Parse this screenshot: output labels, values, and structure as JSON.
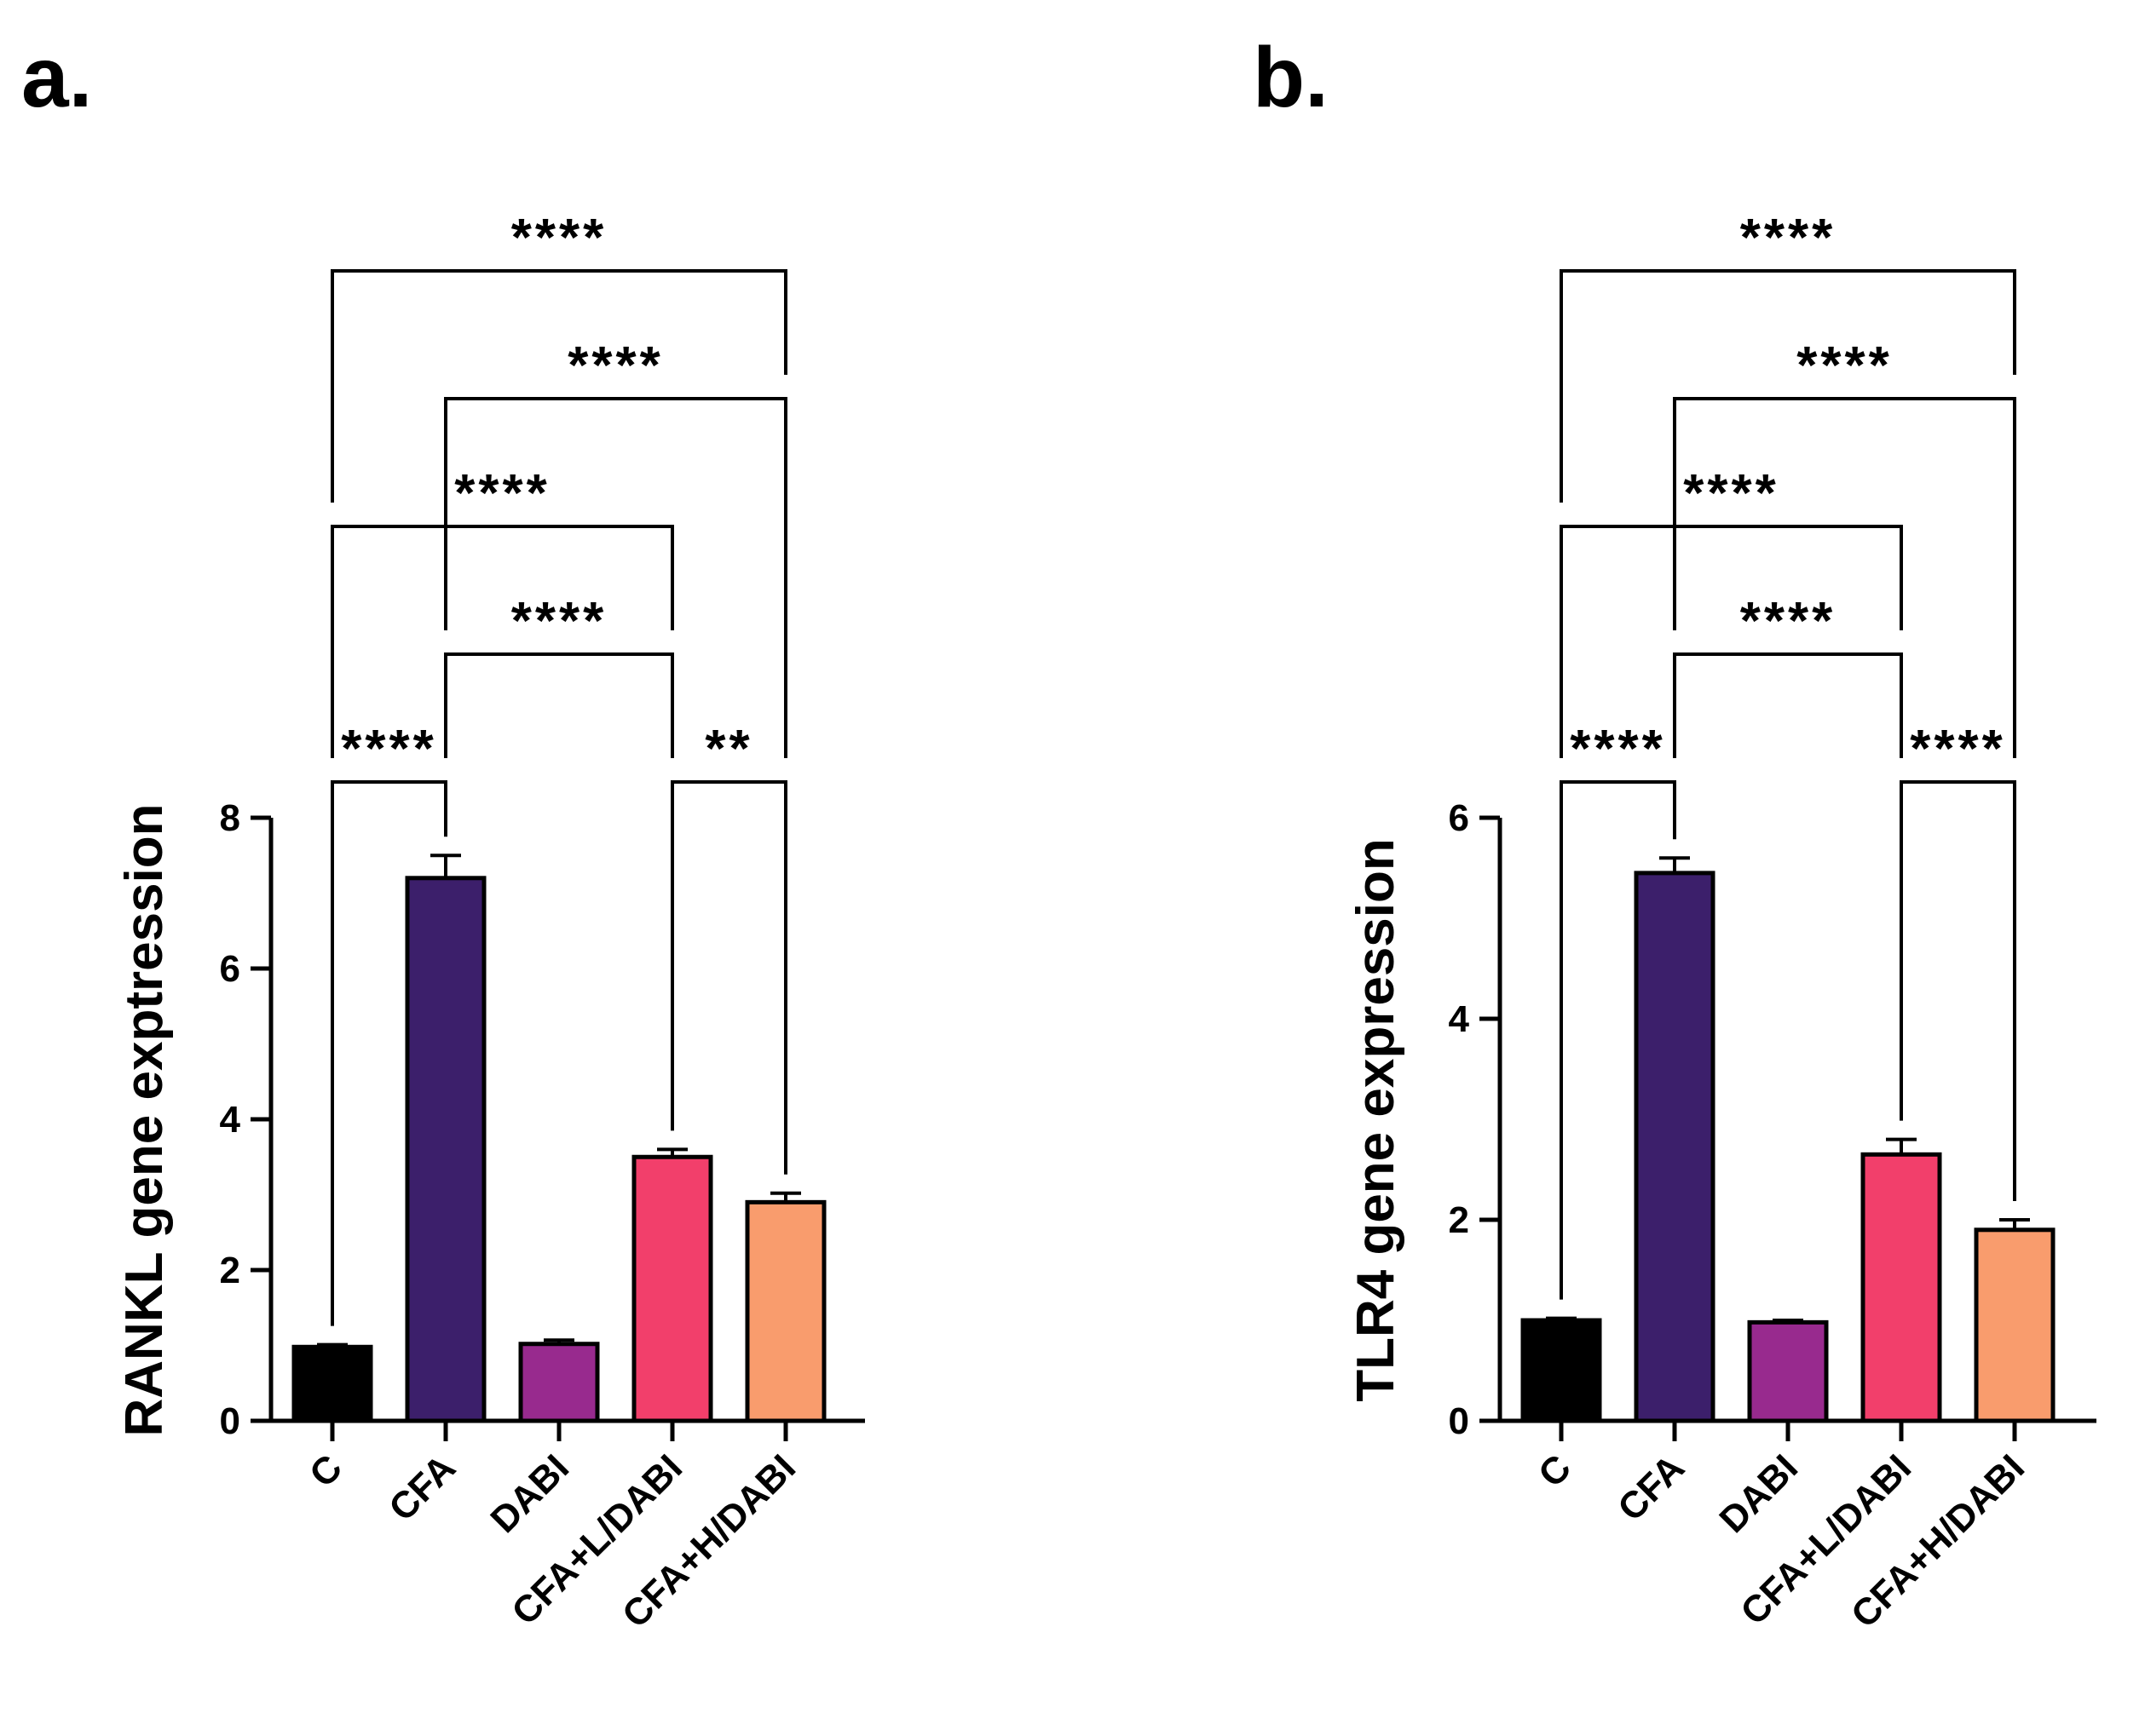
{
  "chart_data": [
    {
      "type": "bar",
      "panel": "a.",
      "categories": [
        "C",
        "CFA",
        "DABI",
        "CFA+L/DABI",
        "CFA+H/DABI"
      ],
      "values": [
        0.98,
        7.2,
        1.02,
        3.5,
        2.9
      ],
      "errors": [
        0.03,
        0.3,
        0.05,
        0.1,
        0.12
      ],
      "colors": [
        "#000000",
        "#3c1f6b",
        "#982a8e",
        "#f23f6b",
        "#f99c6d"
      ],
      "ylabel": "RANKL gene exptression",
      "xlabel": "",
      "ylim": [
        0,
        8
      ],
      "yticks": [
        0,
        2,
        4,
        6,
        8
      ],
      "comparisons": [
        {
          "from": 0,
          "to": 4,
          "label": "****"
        },
        {
          "from": 1,
          "to": 4,
          "label": "****"
        },
        {
          "from": 0,
          "to": 3,
          "label": "****"
        },
        {
          "from": 1,
          "to": 3,
          "label": "****"
        },
        {
          "from": 0,
          "to": 1,
          "label": "****"
        },
        {
          "from": 3,
          "to": 4,
          "label": "**"
        }
      ]
    },
    {
      "type": "bar",
      "panel": "b.",
      "categories": [
        "C",
        "CFA",
        "DABI",
        "CFA+L/DABI",
        "CFA+H/DABI"
      ],
      "values": [
        1.0,
        5.45,
        0.98,
        2.65,
        1.9
      ],
      "errors": [
        0.02,
        0.15,
        0.02,
        0.15,
        0.1
      ],
      "colors": [
        "#000000",
        "#3c1f6b",
        "#982a8e",
        "#f23f6b",
        "#f99c6d"
      ],
      "ylabel": "TLR4 gene expression",
      "xlabel": "",
      "ylim": [
        0,
        6
      ],
      "yticks": [
        0,
        2,
        4,
        6
      ],
      "comparisons": [
        {
          "from": 0,
          "to": 4,
          "label": "****"
        },
        {
          "from": 1,
          "to": 4,
          "label": "****"
        },
        {
          "from": 0,
          "to": 3,
          "label": "****"
        },
        {
          "from": 1,
          "to": 3,
          "label": "****"
        },
        {
          "from": 0,
          "to": 1,
          "label": "****"
        },
        {
          "from": 3,
          "to": 4,
          "label": "****"
        }
      ]
    }
  ]
}
